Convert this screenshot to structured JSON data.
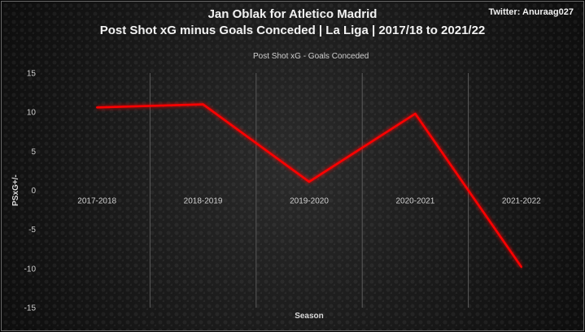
{
  "header": {
    "title_line1": "Jan Oblak for Atletico Madrid",
    "title_line2": "Post Shot xG minus Goals Conceded | La Liga | 2017/18 to 2021/22",
    "twitter": "Twitter: Anuraag027"
  },
  "chart_data": {
    "type": "line",
    "title": "Jan Oblak for Atletico Madrid — Post Shot xG minus Goals Conceded | La Liga | 2017/18 to 2021/22",
    "xlabel": "Season",
    "ylabel": "PSxG+/-",
    "categories": [
      "2017-2018",
      "2018-2019",
      "2019-2020",
      "2020-2021",
      "2021-2022"
    ],
    "series": [
      {
        "name": "Post Shot xG - Goals Conceded",
        "values": [
          10.6,
          11.0,
          1.1,
          9.8,
          -9.8
        ]
      }
    ],
    "ylim": [
      -15,
      15
    ],
    "yticks": [
      15,
      10,
      5,
      0,
      -5,
      -10,
      -15
    ],
    "grid": "vertical",
    "legend_position": "top",
    "line_color": "#ff0000"
  }
}
